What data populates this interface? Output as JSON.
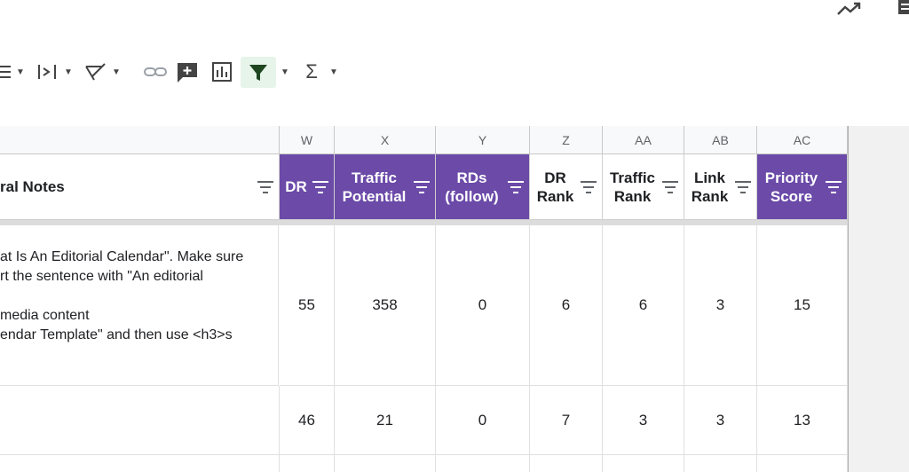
{
  "toolbar": {
    "sigma": "Σ"
  },
  "columns": [
    "W",
    "X",
    "Y",
    "Z",
    "AA",
    "AB",
    "AC"
  ],
  "headers": {
    "general_notes": "ral Notes",
    "dr": "DR",
    "traffic_potential": "Traffic Potential",
    "rds_follow": "RDs (follow)",
    "dr_rank": "DR Rank",
    "traffic_rank": "Traffic Rank",
    "link_rank": "Link Rank",
    "priority_score": "Priority Score"
  },
  "row1": {
    "notes": [
      "at Is An Editorial Calendar\". Make sure",
      "rt the sentence with \"An editorial",
      "",
      "media content",
      "endar Template\" and then use <h3>s"
    ],
    "dr": "55",
    "traffic_potential": "358",
    "rds_follow": "0",
    "dr_rank": "6",
    "traffic_rank": "6",
    "link_rank": "3",
    "priority_score": "15"
  },
  "row2": {
    "dr": "46",
    "traffic_potential": "21",
    "rds_follow": "0",
    "dr_rank": "7",
    "traffic_rank": "3",
    "link_rank": "3",
    "priority_score": "13"
  },
  "colors": {
    "header_purple": "#6b4aa8",
    "filter_active_bg": "#e6f4ea"
  }
}
